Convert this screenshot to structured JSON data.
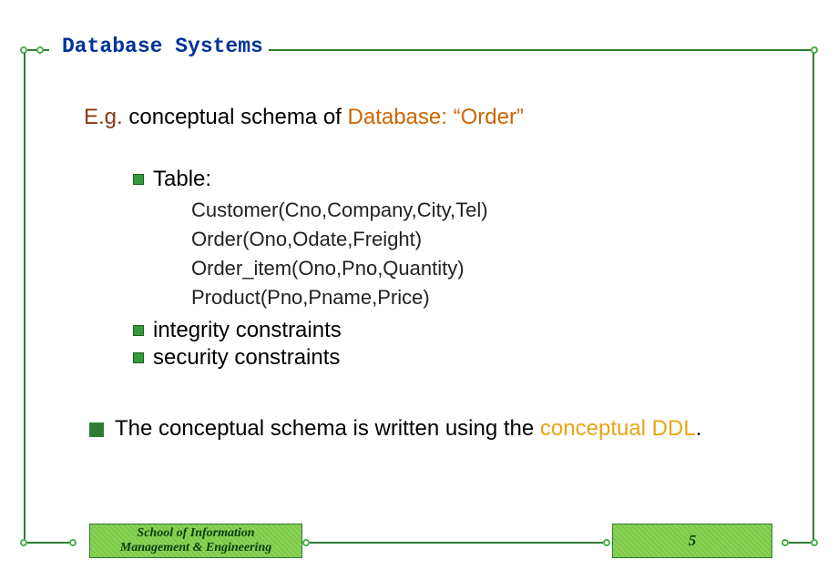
{
  "header": {
    "title": "Database Systems"
  },
  "content": {
    "eg_label": "E.g.",
    "eg_middle": " conceptual schema of ",
    "eg_db": "Database: “Order”",
    "bullets": {
      "table_label": "Table:",
      "tables": [
        "Customer(Cno,Company,City,Tel)",
        "Order(Ono,Odate,Freight)",
        "Order_item(Ono,Pno,Quantity)",
        "Product(Pno,Pname,Price)"
      ],
      "integrity": "integrity constraints",
      "security": "security constraints"
    },
    "main_line_pre": "The conceptual schema is written using the ",
    "main_line_hl": "conceptual DDL",
    "main_line_post": "."
  },
  "footer": {
    "dept_line1": "School of Information",
    "dept_line2": "Management & Engineering",
    "page_number": "5"
  },
  "style": {
    "accent_green": "#2e7d32",
    "circle_green": "#4caf50",
    "title_color": "#003399",
    "highlight_orange": "#e6a517",
    "eg_color": "#8a3a0f",
    "db_color": "#cc6600",
    "footer_fill": "#7ac943",
    "body_fontsize": 24,
    "table_fontsize": 22,
    "title_fontsize": 23,
    "footer_fontsize": 14,
    "page_fontsize": 17
  }
}
